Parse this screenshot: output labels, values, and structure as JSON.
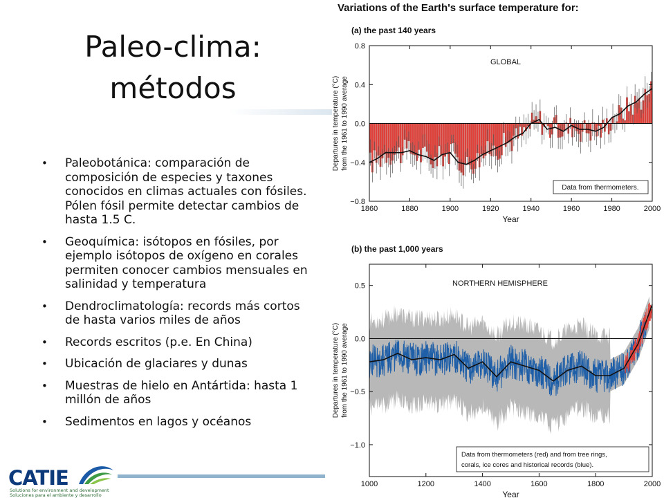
{
  "slide": {
    "title_line1": "Paleo-clima:",
    "title_line2": "métodos",
    "bullets": [
      "Paleobotánica: comparación de composición de especies y taxones conocidos  en climas actuales con fósiles. Pólen fósil permite detectar cambios de hasta 1.5 C.",
      "Geoquímica: isótopos en fósiles, por ejemplo isótopos de oxígeno en corales permiten conocer cambios mensuales en salinidad y temperatura",
      "Dendroclimatología: records más cortos de hasta varios miles de años",
      "Records escritos (p.e. En China)",
      "Ubicación de glaciares y dunas",
      "Muestras de hielo en Antártida: hasta 1 millón de años",
      "Sedimentos en lagos y océanos"
    ]
  },
  "logo": {
    "name": "CATIE",
    "tagline_en": "Solutions for environment and development",
    "tagline_es": "Soluciones para el ambiente y desarrollo"
  },
  "figure_title": "Variations of the Earth's surface temperature for:",
  "colors": {
    "bar_red": "#e0413a",
    "blue_series": "#1f5fa8",
    "gray_band": "#b8b8b8",
    "brand_blue": "#0d3a7a"
  },
  "chart_data": [
    {
      "type": "bar",
      "title": "(a) the past 140 years",
      "panel_label": "GLOBAL",
      "note": "Data from thermometers.",
      "xlabel": "Year",
      "ylabel_line1": "Departures in temperature (°C)",
      "ylabel_line2": "from the 1961 to 1990 average",
      "xlim": [
        1860,
        2000
      ],
      "ylim": [
        -0.8,
        0.8
      ],
      "xticks": [
        1860,
        1880,
        1900,
        1920,
        1940,
        1960,
        1980,
        2000
      ],
      "yticks": [
        -0.8,
        -0.4,
        0.0,
        0.4,
        0.8
      ],
      "ytick_labels": [
        "−0.8",
        "−0.4",
        "0.0",
        "0.4",
        "0.8"
      ],
      "xtick_labels": [
        "1860",
        "1880",
        "1900",
        "1920",
        "1940",
        "1960",
        "1980",
        "2000"
      ],
      "grid": false,
      "series": [
        {
          "x": [
            1860,
            1864,
            1868,
            1872,
            1876,
            1880,
            1884,
            1888,
            1892,
            1896,
            1900,
            1904,
            1908,
            1912,
            1916,
            1920,
            1924,
            1928,
            1932,
            1936,
            1940,
            1944,
            1948,
            1952,
            1956,
            1960,
            1964,
            1968,
            1972,
            1976,
            1980,
            1984,
            1988,
            1992,
            1996,
            2000
          ],
          "y": [
            -0.4,
            -0.36,
            -0.3,
            -0.3,
            -0.3,
            -0.28,
            -0.32,
            -0.34,
            -0.38,
            -0.32,
            -0.3,
            -0.4,
            -0.42,
            -0.38,
            -0.32,
            -0.28,
            -0.24,
            -0.2,
            -0.14,
            -0.1,
            0.0,
            0.04,
            -0.06,
            -0.04,
            -0.08,
            -0.02,
            -0.06,
            -0.06,
            -0.08,
            -0.04,
            0.06,
            0.1,
            0.18,
            0.22,
            0.3,
            0.36
          ]
        }
      ]
    },
    {
      "type": "line",
      "title": "(b) the past 1,000 years",
      "panel_label": "NORTHERN HEMISPHERE",
      "note_line1": "Data from thermometers (red) and from tree rings,",
      "note_line2": "corals, ice cores and historical records (blue).",
      "xlabel": "Year",
      "ylabel_line1": "Departures in temperature (°C)",
      "ylabel_line2": "from the 1961 to 1990 average",
      "xlim": [
        1000,
        2000
      ],
      "ylim": [
        -1.3,
        0.7
      ],
      "xticks": [
        1000,
        1200,
        1400,
        1600,
        1800,
        2000
      ],
      "yticks": [
        -1.0,
        -0.5,
        0.0,
        0.5
      ],
      "ytick_labels": [
        "−1.0",
        "−0.5",
        "0.0",
        "0.5"
      ],
      "xtick_labels": [
        "1000",
        "1200",
        "1400",
        "1600",
        "1800",
        "2000"
      ],
      "grid": false,
      "series": [
        {
          "x": [
            1000,
            1050,
            1100,
            1150,
            1200,
            1250,
            1300,
            1350,
            1400,
            1450,
            1500,
            1550,
            1600,
            1650,
            1700,
            1750,
            1800,
            1850,
            1900,
            1950,
            2000
          ],
          "y": [
            -0.22,
            -0.2,
            -0.14,
            -0.2,
            -0.18,
            -0.2,
            -0.15,
            -0.28,
            -0.22,
            -0.36,
            -0.22,
            -0.26,
            -0.3,
            -0.4,
            -0.3,
            -0.26,
            -0.35,
            -0.35,
            -0.28,
            -0.05,
            0.32
          ]
        }
      ]
    }
  ]
}
